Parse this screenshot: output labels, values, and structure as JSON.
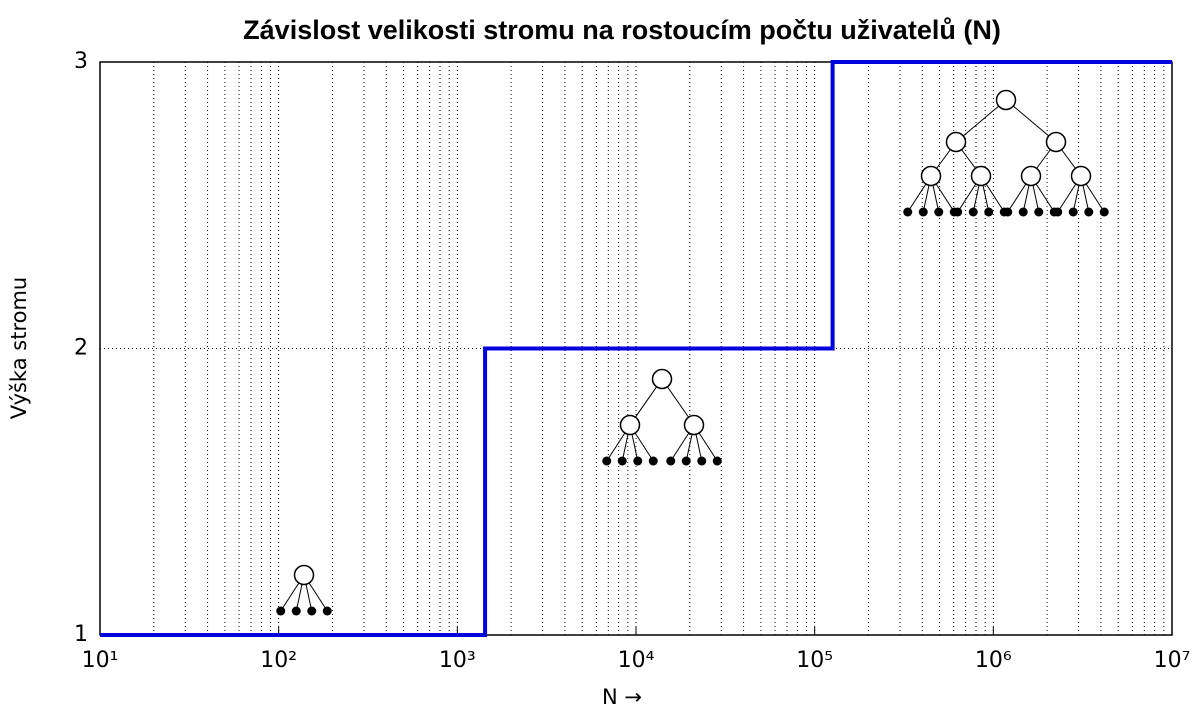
{
  "chart_data": {
    "type": "line",
    "title": "Závislost velikosti stromu na rostoucím počtu uživatelů (N)",
    "x_label": "N →",
    "y_label": "Výška stromu",
    "x": [
      10,
      1430,
      1430,
      126000,
      126000,
      10000000
    ],
    "values": [
      1,
      1,
      2,
      2,
      3,
      3
    ],
    "color": "#0000dd",
    "x_log": true,
    "xlim": [
      10,
      10000000
    ],
    "xticks": [
      {
        "value": 10,
        "label": "10¹"
      },
      {
        "value": 100,
        "label": "10²"
      },
      {
        "value": 1000,
        "label": "10³"
      },
      {
        "value": 10000,
        "label": "10⁴"
      },
      {
        "value": 100000,
        "label": "10⁵"
      },
      {
        "value": 1000000,
        "label": "10⁶"
      },
      {
        "value": 10000000,
        "label": "10⁷"
      }
    ],
    "ylim": [
      1,
      3
    ],
    "yticks": [
      1,
      2,
      3
    ],
    "grid": true
  }
}
